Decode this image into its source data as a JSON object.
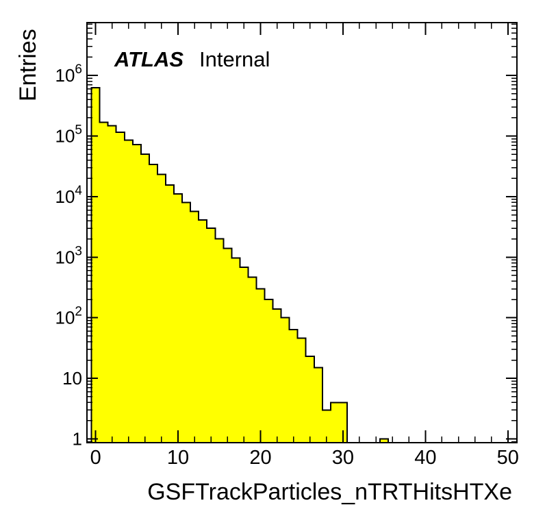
{
  "annotations": {
    "brand": "ATLAS",
    "status": "Internal"
  },
  "chart_data": {
    "type": "bar",
    "subtype": "filled-step-histogram",
    "title": "",
    "xlabel": "GSFTrackParticles_nTRTHitsHTXe",
    "ylabel": "Entries",
    "yscale": "log",
    "grid": false,
    "legend": "none",
    "xlim": [
      -1.05,
      51.1
    ],
    "ylim": [
      0.867,
      7450000
    ],
    "bin_width": 1,
    "bin_centers": [
      0,
      1,
      2,
      3,
      4,
      5,
      6,
      7,
      8,
      9,
      10,
      11,
      12,
      13,
      14,
      15,
      16,
      17,
      18,
      19,
      20,
      21,
      22,
      23,
      24,
      25,
      26,
      27,
      28,
      29,
      30,
      31,
      32,
      33,
      34,
      35,
      36,
      37,
      38,
      39,
      40,
      41,
      42,
      43,
      44,
      45,
      46,
      47,
      48,
      49,
      50
    ],
    "values": [
      630000,
      169000,
      148000,
      116000,
      86000,
      72000,
      50000,
      34000,
      23400,
      15500,
      11100,
      8000,
      5700,
      4100,
      3000,
      2000,
      1400,
      970,
      680,
      470,
      300,
      200,
      140,
      100,
      64,
      46,
      23,
      15,
      3,
      4,
      4,
      0,
      0,
      0,
      0,
      1,
      0,
      0,
      0,
      0,
      0,
      0,
      0,
      0,
      0,
      0,
      0,
      0,
      0,
      0,
      0
    ],
    "x_major_ticks": [
      0,
      10,
      20,
      30,
      40,
      50
    ],
    "x_major_tick_labels": [
      "0",
      "10",
      "20",
      "30",
      "40",
      "50"
    ],
    "x_minor_tick_step": 2,
    "y_major_ticks": [
      1,
      10,
      100,
      1000,
      10000,
      100000,
      1000000
    ],
    "y_tick_labels": [
      "1",
      "10",
      "10^2",
      "10^3",
      "10^4",
      "10^5",
      "10^6"
    ],
    "colors": {
      "bar_fill": "#ffff00",
      "bar_stroke": "#000000",
      "axis": "#000000",
      "text": "#000000",
      "background": "#ffffff"
    }
  }
}
